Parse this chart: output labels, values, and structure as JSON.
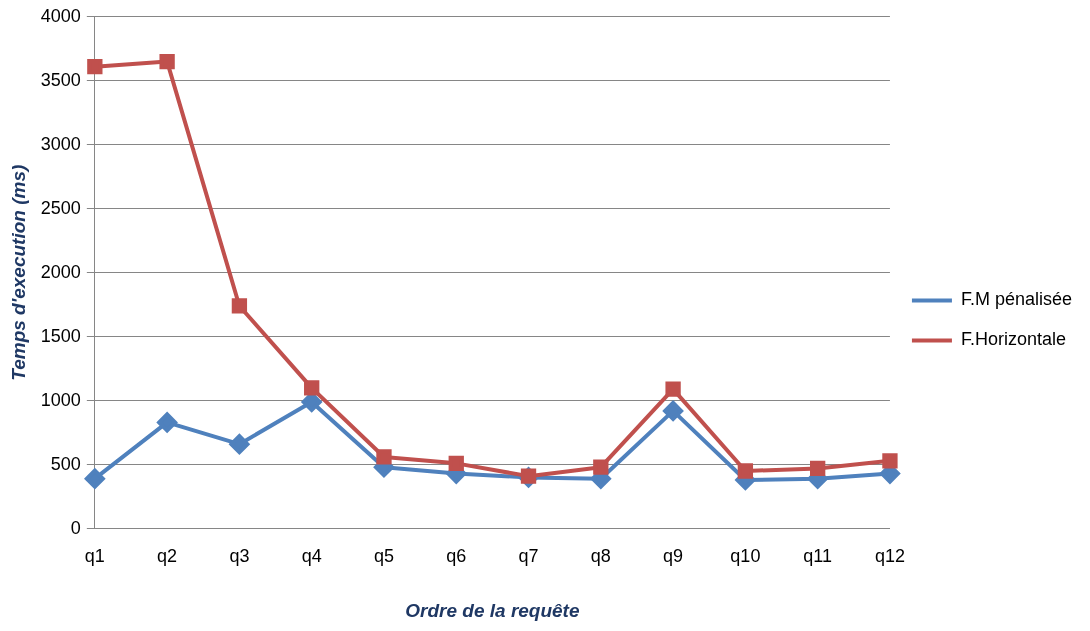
{
  "chart_data": {
    "type": "line",
    "xlabel": "Ordre de la requête",
    "ylabel": "Temps d'execution (ms)",
    "categories": [
      "q1",
      "q2",
      "q3",
      "q4",
      "q5",
      "q6",
      "q7",
      "q8",
      "q9",
      "q10",
      "q11",
      "q12"
    ],
    "series": [
      {
        "name": "F.M pénalisée",
        "color": "#4f81bd",
        "marker": "diamond",
        "values": [
          390,
          830,
          660,
          990,
          480,
          430,
          400,
          390,
          920,
          380,
          390,
          430
        ]
      },
      {
        "name": "F.Horizontale",
        "color": "#c0504d",
        "marker": "square",
        "values": [
          3610,
          3650,
          1740,
          1100,
          560,
          510,
          410,
          480,
          1090,
          450,
          470,
          530
        ]
      }
    ],
    "ylim": [
      0,
      4000
    ],
    "yticks": [
      0,
      500,
      1000,
      1500,
      2000,
      2500,
      3000,
      3500,
      4000
    ],
    "grid": "y",
    "legend": "right",
    "line_style": "solid"
  }
}
